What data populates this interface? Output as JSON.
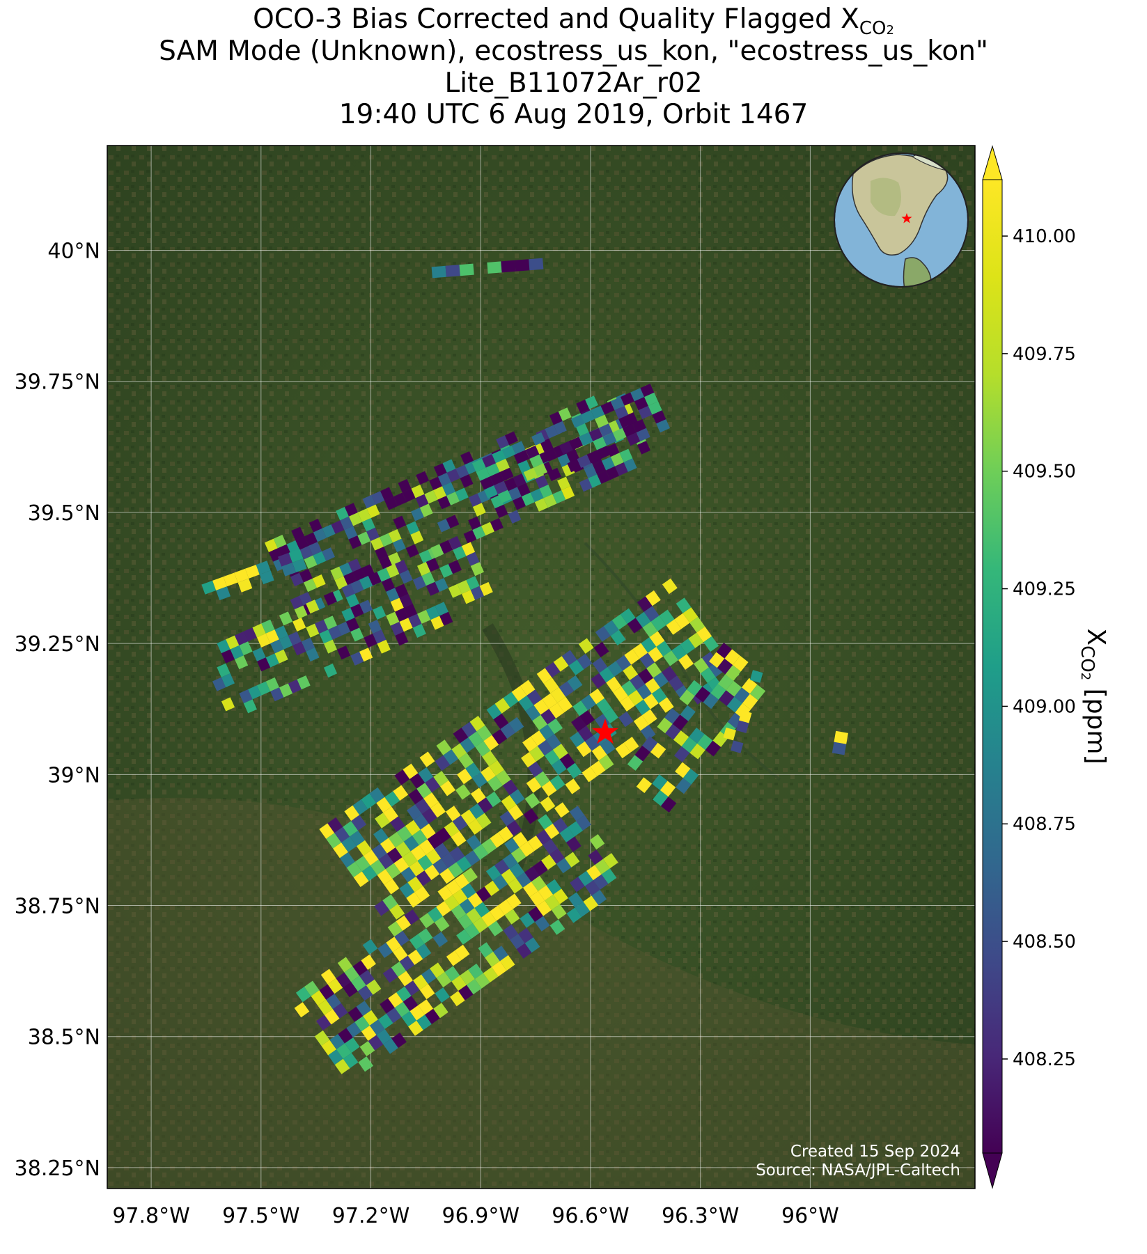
{
  "title": {
    "line1_prefix": "OCO-3 Bias Corrected and Quality Flagged X",
    "line1_sub": "CO",
    "line1_sub2": "2",
    "line2": "SAM Mode (Unknown), ecostress_us_kon, \"ecostress_us_kon\"",
    "line3": "Lite_B11072Ar_r02",
    "line4": "19:40 UTC 6 Aug 2019, Orbit 1467"
  },
  "map": {
    "lon_range": [
      -97.92,
      -95.55
    ],
    "lat_range": [
      38.21,
      40.2
    ],
    "lon_ticks": [
      {
        "value": -97.8,
        "label": "97.8°W"
      },
      {
        "value": -97.5,
        "label": "97.5°W"
      },
      {
        "value": -97.2,
        "label": "97.2°W"
      },
      {
        "value": -96.9,
        "label": "96.9°W"
      },
      {
        "value": -96.6,
        "label": "96.6°W"
      },
      {
        "value": -96.3,
        "label": "96.3°W"
      },
      {
        "value": -96.0,
        "label": "96°W"
      }
    ],
    "lat_ticks": [
      {
        "value": 40.0,
        "label": "40°N"
      },
      {
        "value": 39.75,
        "label": "39.75°N"
      },
      {
        "value": 39.5,
        "label": "39.5°N"
      },
      {
        "value": 39.25,
        "label": "39.25°N"
      },
      {
        "value": 39.0,
        "label": "39°N"
      },
      {
        "value": 38.75,
        "label": "38.75°N"
      },
      {
        "value": 38.5,
        "label": "38.5°N"
      },
      {
        "value": 38.25,
        "label": "38.25°N"
      }
    ],
    "grid": true,
    "basemap": "satellite imagery",
    "target": {
      "lon": -96.56,
      "lat": 39.08,
      "marker": "red-star"
    },
    "inset_globe": {
      "marker": "red-star",
      "placement": "top-right"
    }
  },
  "colorbar": {
    "label_prefix": "X",
    "label_sub": "CO",
    "label_sub2": "2",
    "label_suffix": " [ppm]",
    "min": 408.05,
    "max": 410.12,
    "colormap": "viridis",
    "extend": "both",
    "ticks": [
      {
        "value": 410.0,
        "label": "410.00"
      },
      {
        "value": 409.75,
        "label": "409.75"
      },
      {
        "value": 409.5,
        "label": "409.50"
      },
      {
        "value": 409.25,
        "label": "409.25"
      },
      {
        "value": 409.0,
        "label": "409.00"
      },
      {
        "value": 408.75,
        "label": "408.75"
      },
      {
        "value": 408.5,
        "label": "408.50"
      },
      {
        "value": 408.25,
        "label": "408.25"
      }
    ]
  },
  "credit": {
    "line1": "Created 15 Sep 2024",
    "line2": "Source: NASA/JPL-Caltech"
  }
}
